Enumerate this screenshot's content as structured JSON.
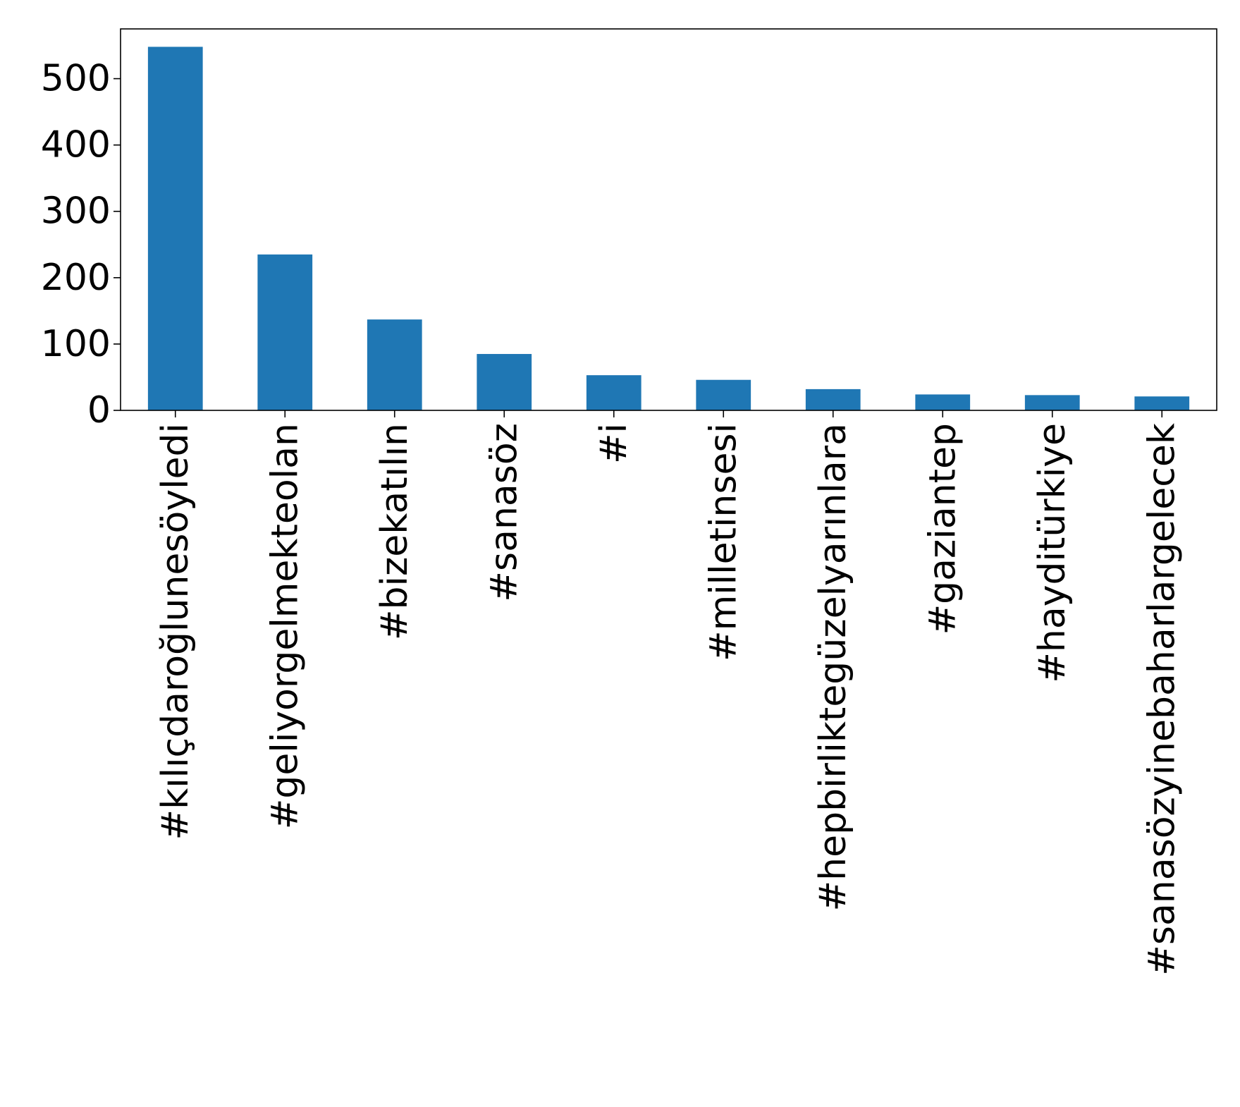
{
  "chart_data": {
    "type": "bar",
    "title": "",
    "xlabel": "",
    "ylabel": "",
    "categories": [
      "#kılıçdaroğlunesöyledi",
      "#geliyorgelmekteolan",
      "#bizekatılın",
      "#sanasöz",
      "#i",
      "#milletinsesi",
      "#hepbirliktegüzelyarınlara",
      "#gaziantep",
      "#hayditürkiye",
      "#sanasözyinebaharlargelecek"
    ],
    "values": [
      548,
      235,
      137,
      85,
      53,
      46,
      32,
      24,
      23,
      21
    ],
    "yticks": [
      "0",
      "100",
      "200",
      "300",
      "400",
      "500"
    ],
    "ylim": [
      0,
      575
    ],
    "bar_color": "#1f77b4",
    "grid": false,
    "legend": "none",
    "x_tick_rotation": "vertical"
  }
}
